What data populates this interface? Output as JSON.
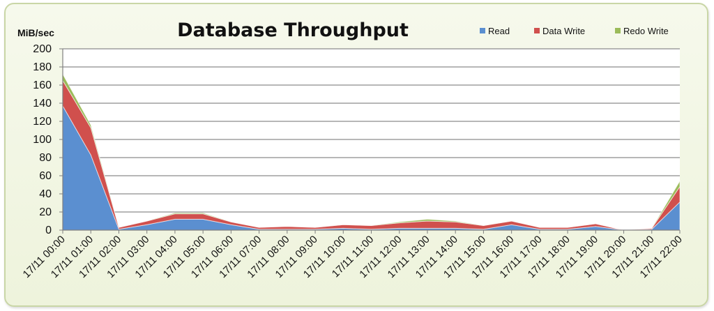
{
  "chart_data": {
    "type": "area",
    "stacked": true,
    "title": "Database Throughput",
    "ylabel": "MiB/sec",
    "xlabel": "",
    "ylim": [
      0,
      200
    ],
    "yticks": [
      0,
      20,
      40,
      60,
      80,
      100,
      120,
      140,
      160,
      180,
      200
    ],
    "grid": true,
    "legend_position": "top-right",
    "categories": [
      "17/11 00:00",
      "17/11 01:00",
      "17/11 02:00",
      "17/11 03:00",
      "17/11 04:00",
      "17/11 05:00",
      "17/11 06:00",
      "17/11 07:00",
      "17/11 08:00",
      "17/11 09:00",
      "17/11 10:00",
      "17/11 11:00",
      "17/11 12:00",
      "17/11 13:00",
      "17/11 14:00",
      "17/11 15:00",
      "17/11 16:00",
      "17/11 17:00",
      "17/11 18:00",
      "17/11 19:00",
      "17/11 20:00",
      "17/11 21:00",
      "17/11 22:00"
    ],
    "series": [
      {
        "name": "Read",
        "color": "#5b8fd0",
        "values": [
          137,
          83,
          1,
          6,
          12,
          12,
          6,
          1,
          1,
          1,
          2,
          1,
          2,
          2,
          2,
          1,
          6,
          1,
          1,
          4,
          0,
          1,
          31
        ]
      },
      {
        "name": "Data Write",
        "color": "#d0504d",
        "values": [
          28,
          30,
          2,
          4,
          6,
          6,
          3,
          2,
          3,
          2,
          4,
          4,
          6,
          8,
          7,
          4,
          4,
          2,
          2,
          3,
          0,
          1,
          17
        ]
      },
      {
        "name": "Redo Write",
        "color": "#9bbb59",
        "values": [
          7,
          3,
          0,
          0,
          1,
          1,
          0,
          0,
          0,
          0,
          0,
          0,
          1,
          2,
          1,
          0,
          0,
          0,
          0,
          0,
          0,
          0,
          6
        ]
      }
    ]
  }
}
